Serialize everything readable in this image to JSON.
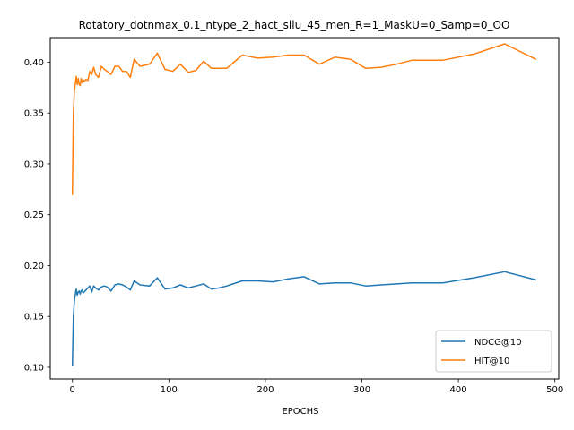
{
  "chart_data": {
    "type": "line",
    "title": "Rotatory_dotnmax_0.1_ntype_2_hact_silu_45_men_R=1_MaskU=0_Samp=0_OO",
    "xlabel": "EPOCHS",
    "ylabel": "",
    "xlim": [
      -23,
      504
    ],
    "ylim": [
      0.0885,
      0.4242
    ],
    "xticks": [
      0,
      100,
      200,
      300,
      400,
      500
    ],
    "yticks": [
      0.1,
      0.15,
      0.2,
      0.25,
      0.3,
      0.35,
      0.4
    ],
    "grid": false,
    "legend_position": "lower-right",
    "series": [
      {
        "name": "NDCG@10",
        "color": "#1f77b4",
        "x": [
          0,
          1,
          2,
          3,
          4,
          5,
          6,
          7,
          8,
          9,
          10,
          11,
          12,
          14,
          16,
          18,
          20,
          22,
          24,
          27,
          30,
          33,
          36,
          40,
          44,
          48,
          52,
          56,
          60,
          64,
          70,
          80,
          88,
          96,
          104,
          112,
          120,
          128,
          136,
          144,
          152,
          160,
          176,
          192,
          208,
          224,
          240,
          256,
          272,
          288,
          304,
          320,
          336,
          352,
          368,
          384,
          416,
          448,
          480
        ],
        "y": [
          0.102,
          0.15,
          0.165,
          0.172,
          0.177,
          0.171,
          0.174,
          0.175,
          0.172,
          0.175,
          0.176,
          0.173,
          0.174,
          0.176,
          0.178,
          0.18,
          0.174,
          0.18,
          0.178,
          0.176,
          0.179,
          0.18,
          0.179,
          0.175,
          0.181,
          0.182,
          0.181,
          0.179,
          0.176,
          0.185,
          0.181,
          0.18,
          0.188,
          0.177,
          0.178,
          0.181,
          0.178,
          0.18,
          0.182,
          0.177,
          0.178,
          0.18,
          0.185,
          0.185,
          0.184,
          0.187,
          0.189,
          0.182,
          0.183,
          0.183,
          0.18,
          0.181,
          0.182,
          0.183,
          0.183,
          0.183,
          0.188,
          0.194,
          0.186
        ]
      },
      {
        "name": "HIT@10",
        "color": "#ff7f0e",
        "x": [
          0,
          1,
          2,
          3,
          4,
          5,
          6,
          7,
          8,
          9,
          10,
          11,
          12,
          14,
          16,
          18,
          20,
          22,
          24,
          27,
          30,
          33,
          36,
          40,
          44,
          48,
          52,
          56,
          60,
          64,
          70,
          80,
          88,
          96,
          104,
          112,
          120,
          128,
          136,
          144,
          152,
          160,
          176,
          192,
          208,
          224,
          240,
          256,
          272,
          288,
          304,
          320,
          336,
          352,
          368,
          384,
          416,
          448,
          480
        ],
        "y": [
          0.27,
          0.35,
          0.372,
          0.379,
          0.386,
          0.378,
          0.384,
          0.378,
          0.377,
          0.384,
          0.38,
          0.383,
          0.381,
          0.383,
          0.382,
          0.391,
          0.388,
          0.395,
          0.388,
          0.385,
          0.396,
          0.393,
          0.391,
          0.388,
          0.396,
          0.396,
          0.391,
          0.391,
          0.385,
          0.403,
          0.396,
          0.398,
          0.409,
          0.393,
          0.391,
          0.398,
          0.39,
          0.392,
          0.401,
          0.394,
          0.394,
          0.394,
          0.407,
          0.404,
          0.405,
          0.407,
          0.407,
          0.398,
          0.405,
          0.403,
          0.394,
          0.395,
          0.398,
          0.402,
          0.402,
          0.402,
          0.408,
          0.418,
          0.403
        ]
      }
    ]
  }
}
